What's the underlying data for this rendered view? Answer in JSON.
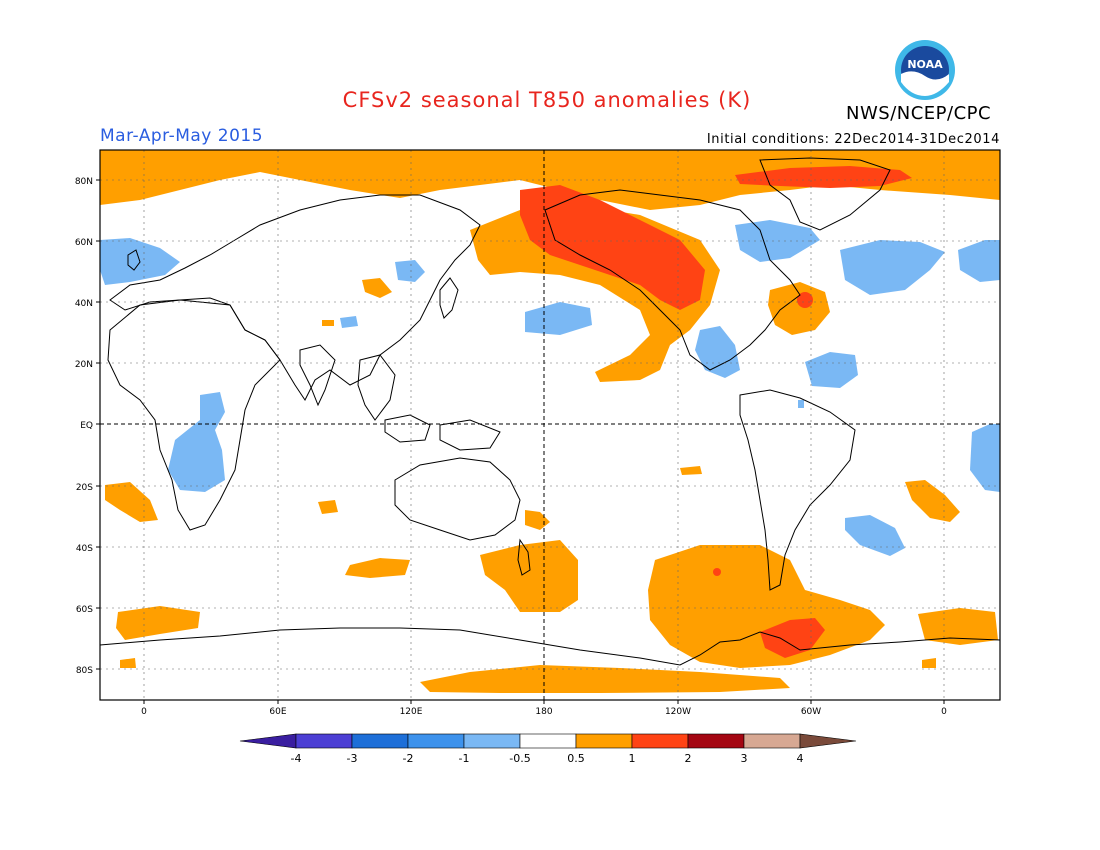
{
  "title": "CFSv2 seasonal T850 anomalies (K)",
  "period": "Mar-Apr-May 2015",
  "initial_conditions": "Initial conditions: 22Dec2014-31Dec2014",
  "agency": "NWS/NCEP/CPC",
  "logo_text": "NOAA",
  "latitude_labels": [
    "80N",
    "60N",
    "40N",
    "20N",
    "EQ",
    "20S",
    "40S",
    "60S",
    "80S"
  ],
  "longitude_labels": [
    "0",
    "60E",
    "120E",
    "180",
    "120W",
    "60W",
    "0"
  ],
  "colorbar": {
    "labels": [
      "-4",
      "-3",
      "-2",
      "-1",
      "-0.5",
      "0.5",
      "1",
      "2",
      "3",
      "4"
    ],
    "colors": [
      "#3a1ea0",
      "#4c3fd4",
      "#1e6fd8",
      "#3d92ec",
      "#7ab8f4",
      "#ffffff",
      "#ff9f00",
      "#ff4314",
      "#a40612",
      "#d7a893",
      "#7a4a3a"
    ]
  },
  "colors": {
    "positive_weak": "#ff9f00",
    "positive_moderate": "#ff4314",
    "negative_weak": "#7ab8f4",
    "title": "#e8251e",
    "period": "#2a5de0"
  }
}
